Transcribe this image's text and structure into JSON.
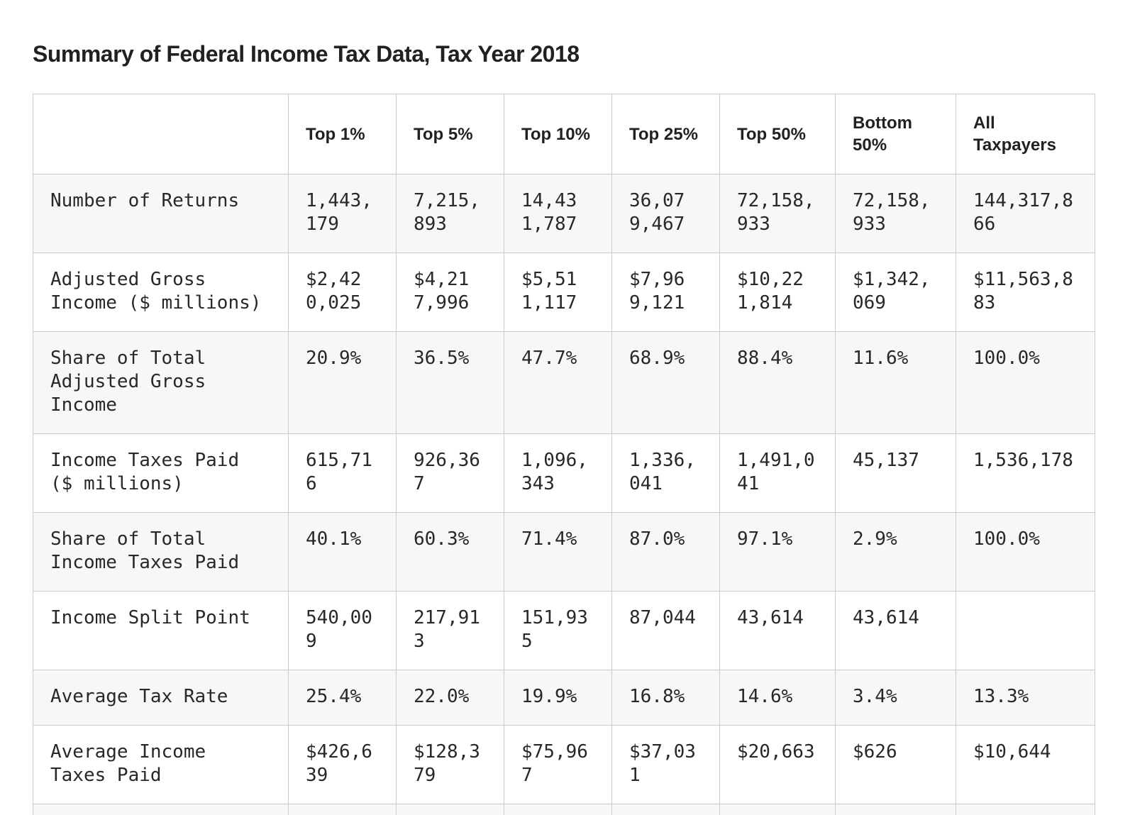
{
  "page": {
    "title": "Summary of Federal Income Tax Data, Tax Year 2018"
  },
  "colors": {
    "bg": "#ffffff",
    "stripe": "#f6f7f7",
    "border": "#cbcbcb",
    "text": "#26282b",
    "title": "#202122"
  },
  "table": {
    "columns": [
      "",
      "Top 1%",
      "Top 5%",
      "Top 10%",
      "Top 25%",
      "Top 50%",
      "Bottom 50%",
      "All Taxpayers"
    ],
    "rows": [
      {
        "label": "Number of Returns",
        "values": [
          "1,443,179",
          "7,215,893",
          "14,431,787",
          "36,079,467",
          "72,158,933",
          "72,158,933",
          "144,317,866"
        ]
      },
      {
        "label": "Adjusted Gross Income ($ millions)",
        "values": [
          "$2,420,025",
          "$4,217,996",
          "$5,511,117",
          "$7,969,121",
          "$10,221,814",
          "$1,342,069",
          "$11,563,883"
        ]
      },
      {
        "label": "Share of Total Adjusted Gross Income",
        "values": [
          "20.9%",
          "36.5%",
          "47.7%",
          "68.9%",
          "88.4%",
          "11.6%",
          "100.0%"
        ]
      },
      {
        "label": "Income Taxes Paid ($ millions)",
        "values": [
          "615,716",
          "926,367",
          "1,096,343",
          "1,336,041",
          "1,491,041",
          "45,137",
          "1,536,178"
        ]
      },
      {
        "label": "Share of Total Income Taxes Paid",
        "values": [
          "40.1%",
          "60.3%",
          "71.4%",
          "87.0%",
          "97.1%",
          "2.9%",
          "100.0%"
        ]
      },
      {
        "label": "Income Split Point",
        "values": [
          "540,009",
          "217,913",
          "151,935",
          "87,044",
          "43,614",
          "43,614",
          ""
        ]
      },
      {
        "label": "Average Tax Rate",
        "values": [
          "25.4%",
          "22.0%",
          "19.9%",
          "16.8%",
          "14.6%",
          "3.4%",
          "13.3%"
        ]
      },
      {
        "label": "Average Income Taxes Paid",
        "values": [
          "$426,639",
          "$128,379",
          "$75,967",
          "$37,031",
          "$20,663",
          "$626",
          "$10,644"
        ]
      }
    ]
  }
}
